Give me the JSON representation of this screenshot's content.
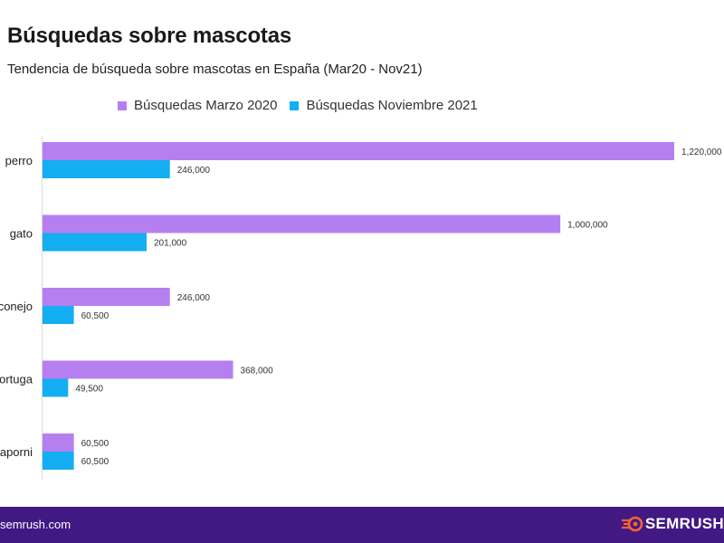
{
  "header": {
    "title": "Búsquedas sobre mascotas",
    "subtitle": "Tendencia de búsqueda sobre mascotas en España (Mar20 - Nov21)"
  },
  "footer": {
    "url": "semrush.com",
    "brand": "SEMRUSH",
    "brand_icon": "semrush-fire-icon",
    "background": "#421983"
  },
  "chart_data": {
    "type": "bar",
    "orientation": "horizontal",
    "categories": [
      "perro",
      "gato",
      "conejo",
      "tortuga",
      "agaporni"
    ],
    "series": [
      {
        "name": "Búsquedas Marzo 2020",
        "color": "#b57ff0",
        "values": [
          1220000,
          1000000,
          246000,
          368000,
          60500
        ],
        "labels": [
          "1,220,000",
          "1,000,000",
          "246,000",
          "368,000",
          "60,500"
        ]
      },
      {
        "name": "Búsquedas Noviembre 2021",
        "color": "#14aef2",
        "values": [
          246000,
          201000,
          60500,
          49500,
          60500
        ],
        "labels": [
          "246,000",
          "201,000",
          "60,500",
          "49,500",
          "60,500"
        ]
      }
    ],
    "xlim": [
      0,
      1220000
    ],
    "legend_position": "top",
    "grid": false
  }
}
